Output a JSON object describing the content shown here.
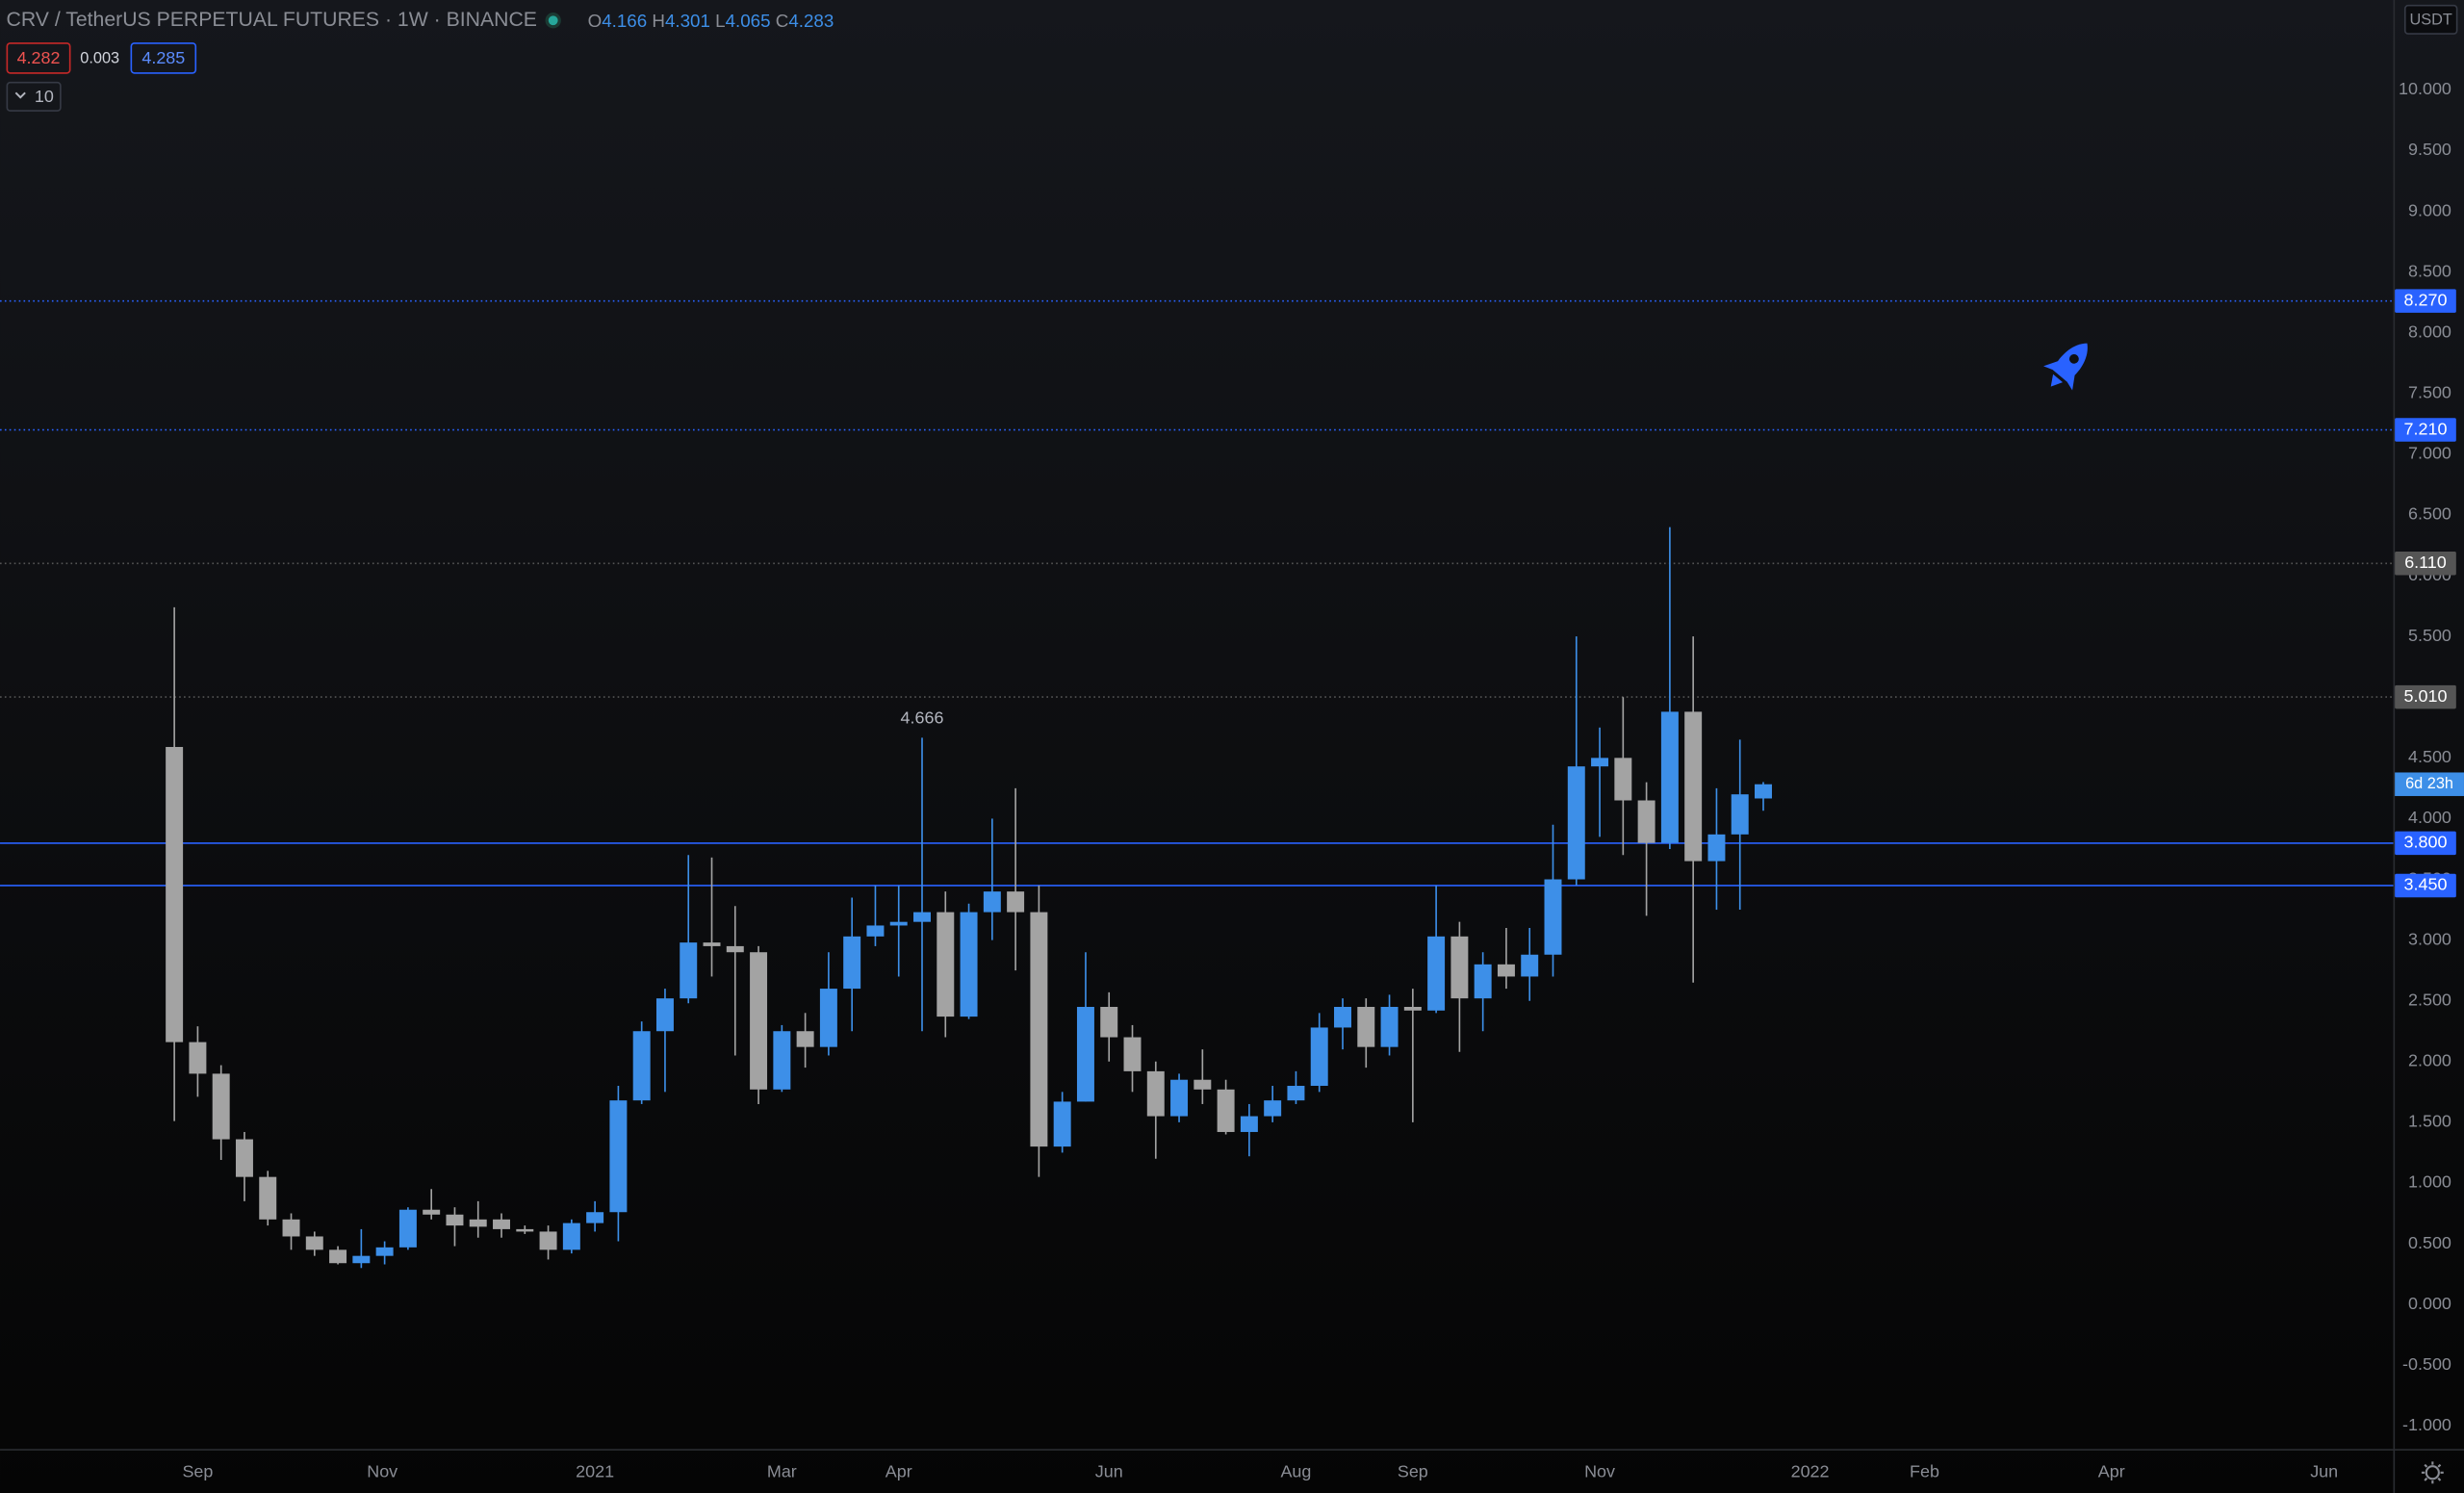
{
  "chart_data": {
    "type": "candlestick",
    "title": "CRV / TetherUS PERPETUAL FUTURES · 1W · BINANCE",
    "ohlc_labels": [
      "O",
      "H",
      "L",
      "C"
    ],
    "bid": 4.282,
    "spread": 0.003,
    "ask": 4.285,
    "indicator": 10,
    "currency": "USDT",
    "countdown": "6d 23h",
    "up_color": "#3d8fe8",
    "down_color": "#a3a3a3",
    "open": [
      4.59,
      2.16,
      1.9,
      1.36,
      1.05,
      0.7,
      0.56,
      0.45,
      0.34,
      0.4,
      0.47,
      0.78,
      0.74,
      0.7,
      0.7,
      0.62,
      0.6,
      0.45,
      0.67,
      0.76,
      1.68,
      2.25,
      2.52,
      2.98,
      2.95,
      2.9,
      1.77,
      2.25,
      2.12,
      2.6,
      3.03,
      3.12,
      3.15,
      3.23,
      2.37,
      3.23,
      3.4,
      3.23,
      1.3,
      1.67,
      2.45,
      2.2,
      1.92,
      1.55,
      1.85,
      1.77,
      1.42,
      1.55,
      1.68,
      1.8,
      2.28,
      2.45,
      2.12,
      2.45,
      2.42,
      3.03,
      2.52,
      2.8,
      2.7,
      2.88,
      3.5,
      4.43,
      4.5,
      4.15,
      3.8,
      4.88,
      3.65,
      3.87,
      4.166
    ],
    "high": [
      5.74,
      2.29,
      1.97,
      1.42,
      1.1,
      0.75,
      0.6,
      0.48,
      0.62,
      0.52,
      0.8,
      0.95,
      0.8,
      0.85,
      0.75,
      0.65,
      0.65,
      0.7,
      0.85,
      1.8,
      2.33,
      2.6,
      3.7,
      3.68,
      3.28,
      2.95,
      2.3,
      2.4,
      2.9,
      3.35,
      3.45,
      3.45,
      4.666,
      3.4,
      3.3,
      4.0,
      4.25,
      3.45,
      1.75,
      2.9,
      2.57,
      2.3,
      2.0,
      1.9,
      2.1,
      1.85,
      1.65,
      1.8,
      1.92,
      2.4,
      2.52,
      2.52,
      2.55,
      2.6,
      3.45,
      3.15,
      2.9,
      3.1,
      3.1,
      3.95,
      5.5,
      4.75,
      5.0,
      4.3,
      6.4,
      5.5,
      4.25,
      4.65,
      4.301
    ],
    "low": [
      1.51,
      1.71,
      1.19,
      0.85,
      0.65,
      0.45,
      0.4,
      0.33,
      0.3,
      0.33,
      0.45,
      0.7,
      0.48,
      0.55,
      0.55,
      0.58,
      0.37,
      0.42,
      0.6,
      0.52,
      1.65,
      1.75,
      2.48,
      2.7,
      2.05,
      1.65,
      1.75,
      1.95,
      2.05,
      2.25,
      2.95,
      2.7,
      2.25,
      2.2,
      2.35,
      3.0,
      2.75,
      1.05,
      1.25,
      1.67,
      2.0,
      1.75,
      1.2,
      1.5,
      1.65,
      1.4,
      1.22,
      1.5,
      1.65,
      1.75,
      2.1,
      1.95,
      2.05,
      1.5,
      2.4,
      2.08,
      2.25,
      2.6,
      2.5,
      2.7,
      3.45,
      3.85,
      3.7,
      3.2,
      3.75,
      2.65,
      3.25,
      3.25,
      4.065
    ],
    "close": [
      2.16,
      1.9,
      1.36,
      1.05,
      0.7,
      0.56,
      0.45,
      0.34,
      0.4,
      0.47,
      0.78,
      0.74,
      0.65,
      0.64,
      0.62,
      0.6,
      0.45,
      0.67,
      0.76,
      1.68,
      2.25,
      2.52,
      2.98,
      2.95,
      2.9,
      1.77,
      2.25,
      2.12,
      2.6,
      3.03,
      3.12,
      3.15,
      3.23,
      2.37,
      3.23,
      3.4,
      3.23,
      1.3,
      1.67,
      2.45,
      2.2,
      1.92,
      1.55,
      1.85,
      1.77,
      1.42,
      1.55,
      1.68,
      1.8,
      2.28,
      2.45,
      2.12,
      2.45,
      2.42,
      3.03,
      2.52,
      2.8,
      2.7,
      2.88,
      3.5,
      4.43,
      4.5,
      4.15,
      3.8,
      4.88,
      3.65,
      3.87,
      4.2,
      4.283
    ],
    "annotated_high": 32,
    "xlim": [
      -7.46,
      94.96
    ],
    "xticks": [
      {
        "value": 1,
        "label": "Sep"
      },
      {
        "value": 8.9,
        "label": "Nov"
      },
      {
        "value": 18,
        "label": "2021"
      },
      {
        "value": 26,
        "label": "Mar"
      },
      {
        "value": 31,
        "label": "Apr"
      },
      {
        "value": 40,
        "label": "Jun"
      },
      {
        "value": 48,
        "label": "Aug"
      },
      {
        "value": 53,
        "label": "Sep"
      },
      {
        "value": 61,
        "label": "Nov"
      },
      {
        "value": 70,
        "label": "2022"
      },
      {
        "value": 74.9,
        "label": "Feb"
      },
      {
        "value": 82.9,
        "label": "Apr"
      },
      {
        "value": 92,
        "label": "Jun"
      }
    ],
    "ylim": [
      -1.19,
      10.74
    ],
    "yticks": [
      {
        "value": -1,
        "label": "-1.000"
      },
      {
        "value": -0.5,
        "label": "-0.500"
      },
      {
        "value": 0,
        "label": "0.000"
      },
      {
        "value": 0.5,
        "label": "0.500"
      },
      {
        "value": 1,
        "label": "1.000"
      },
      {
        "value": 1.5,
        "label": "1.500"
      },
      {
        "value": 2,
        "label": "2.000"
      },
      {
        "value": 2.5,
        "label": "2.500"
      },
      {
        "value": 3,
        "label": "3.000"
      },
      {
        "value": 3.5,
        "label": "3.500"
      },
      {
        "value": 4,
        "label": "4.000"
      },
      {
        "value": 4.5,
        "label": "4.500"
      },
      {
        "value": 5,
        "label": "5.000"
      },
      {
        "value": 5.5,
        "label": "5.500"
      },
      {
        "value": 6,
        "label": "6.000"
      },
      {
        "value": 6.5,
        "label": "6.500"
      },
      {
        "value": 7,
        "label": "7.000"
      },
      {
        "value": 7.5,
        "label": "7.500"
      },
      {
        "value": 8,
        "label": "8.000"
      },
      {
        "value": 8.5,
        "label": "8.500"
      },
      {
        "value": 9,
        "label": "9.000"
      },
      {
        "value": 9.5,
        "label": "9.500"
      },
      {
        "value": 10,
        "label": "10.000"
      }
    ],
    "levels": [
      {
        "value": 8.27,
        "label": "8.270",
        "color": "#2962ff",
        "dashed": true
      },
      {
        "value": 7.21,
        "label": "7.210",
        "color": "#2962ff",
        "dashed": true
      },
      {
        "value": 6.11,
        "label": "6.110",
        "color": "#555555",
        "dashed": true
      },
      {
        "value": 5.01,
        "label": "5.010",
        "color": "#555555",
        "dashed": true
      },
      {
        "value": 3.8,
        "label": "3.800",
        "color": "#2962ff",
        "dashed": false
      },
      {
        "value": 3.45,
        "label": "3.450",
        "color": "#2962ff",
        "dashed": false
      }
    ]
  }
}
